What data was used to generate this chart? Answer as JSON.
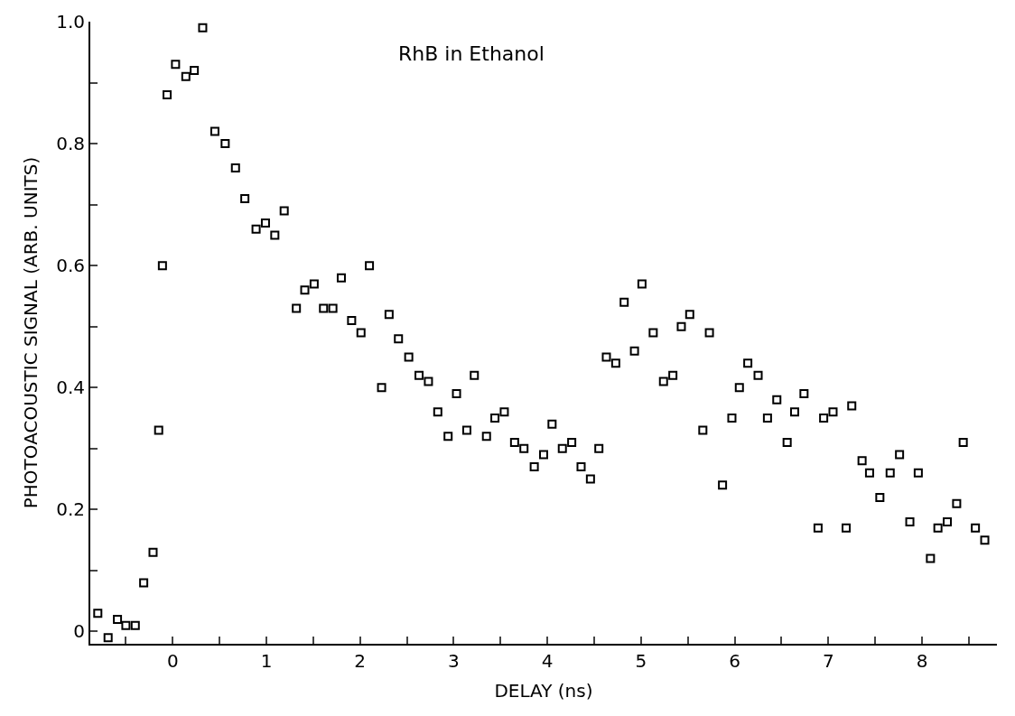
{
  "chart_data": {
    "type": "scatter",
    "xlabel": "DELAY (ns)",
    "ylabel": "PHOTOACOUSTIC SIGNAL (ARB. UNITS)",
    "annotations": [
      "RhB in Ethanol"
    ],
    "x": [
      -0.8,
      -0.69,
      -0.59,
      -0.5,
      -0.4,
      -0.31,
      -0.21,
      -0.15,
      -0.11,
      -0.06,
      0.03,
      0.14,
      0.23,
      0.32,
      0.45,
      0.56,
      0.67,
      0.77,
      0.89,
      0.99,
      1.09,
      1.19,
      1.32,
      1.41,
      1.51,
      1.61,
      1.71,
      1.8,
      1.91,
      2.01,
      2.1,
      2.23,
      2.31,
      2.41,
      2.52,
      2.63,
      2.73,
      2.83,
      2.94,
      3.03,
      3.14,
      3.22,
      3.35,
      3.44,
      3.54,
      3.65,
      3.75,
      3.86,
      3.96,
      4.05,
      4.16,
      4.26,
      4.36,
      4.46,
      4.55,
      4.63,
      4.73,
      4.82,
      4.93,
      5.01,
      5.13,
      5.24,
      5.34,
      5.43,
      5.52,
      5.66,
      5.73,
      5.87,
      5.97,
      6.05,
      6.14,
      6.25,
      6.35,
      6.45,
      6.56,
      6.64,
      6.74,
      6.89,
      6.95,
      7.05,
      7.19,
      7.25,
      7.36,
      7.44,
      7.55,
      7.66,
      7.76,
      7.87,
      7.96,
      8.09,
      8.17,
      8.27,
      8.37,
      8.44,
      8.57,
      8.67
    ],
    "series": [
      {
        "color": "#000000",
        "values": [
          0.03,
          -0.01,
          0.02,
          0.01,
          0.01,
          0.08,
          0.13,
          0.33,
          0.6,
          0.88,
          0.93,
          0.91,
          0.92,
          0.99,
          0.82,
          0.8,
          0.76,
          0.71,
          0.66,
          0.67,
          0.65,
          0.69,
          0.53,
          0.56,
          0.57,
          0.53,
          0.53,
          0.58,
          0.51,
          0.49,
          0.6,
          0.4,
          0.52,
          0.48,
          0.45,
          0.42,
          0.41,
          0.36,
          0.32,
          0.39,
          0.33,
          0.42,
          0.32,
          0.35,
          0.36,
          0.31,
          0.3,
          0.27,
          0.29,
          0.34,
          0.3,
          0.31,
          0.27,
          0.25,
          0.3,
          0.45,
          0.44,
          0.54,
          0.46,
          0.57,
          0.49,
          0.41,
          0.42,
          0.5,
          0.52,
          0.33,
          0.49,
          0.24,
          0.35,
          0.4,
          0.44,
          0.42,
          0.35,
          0.38,
          0.31,
          0.36,
          0.39,
          0.17,
          0.35,
          0.36,
          0.17,
          0.37,
          0.28,
          0.26,
          0.22,
          0.26,
          0.29,
          0.18,
          0.26,
          0.12,
          0.17,
          0.18,
          0.21,
          0.31,
          0.17,
          0.15
        ]
      }
    ],
    "xlim": [
      -0.88,
      8.8
    ],
    "ylim": [
      -0.02,
      1.0
    ],
    "xticks": [
      {
        "value": -0.5,
        "label": null
      },
      0,
      {
        "value": 0.5,
        "label": null
      },
      1,
      {
        "value": 1.5,
        "label": null
      },
      2,
      {
        "value": 2.5,
        "label": null
      },
      3,
      {
        "value": 3.5,
        "label": null
      },
      4,
      {
        "value": 4.5,
        "label": null
      },
      5,
      {
        "value": 5.5,
        "label": null
      },
      6,
      {
        "value": 6.5,
        "label": null
      },
      7,
      {
        "value": 7.5,
        "label": null
      },
      8,
      {
        "value": 8.5,
        "label": null
      }
    ],
    "yticks": [
      0,
      {
        "value": 0.1,
        "label": null
      },
      0.2,
      {
        "value": 0.3,
        "label": null
      },
      0.4,
      {
        "value": 0.5,
        "label": null
      },
      0.6,
      {
        "value": 0.7,
        "label": null
      },
      0.8,
      {
        "value": 0.9,
        "label": null
      },
      {
        "value": 1.0,
        "label": "1.0"
      }
    ],
    "marker": "square",
    "legend": false
  }
}
